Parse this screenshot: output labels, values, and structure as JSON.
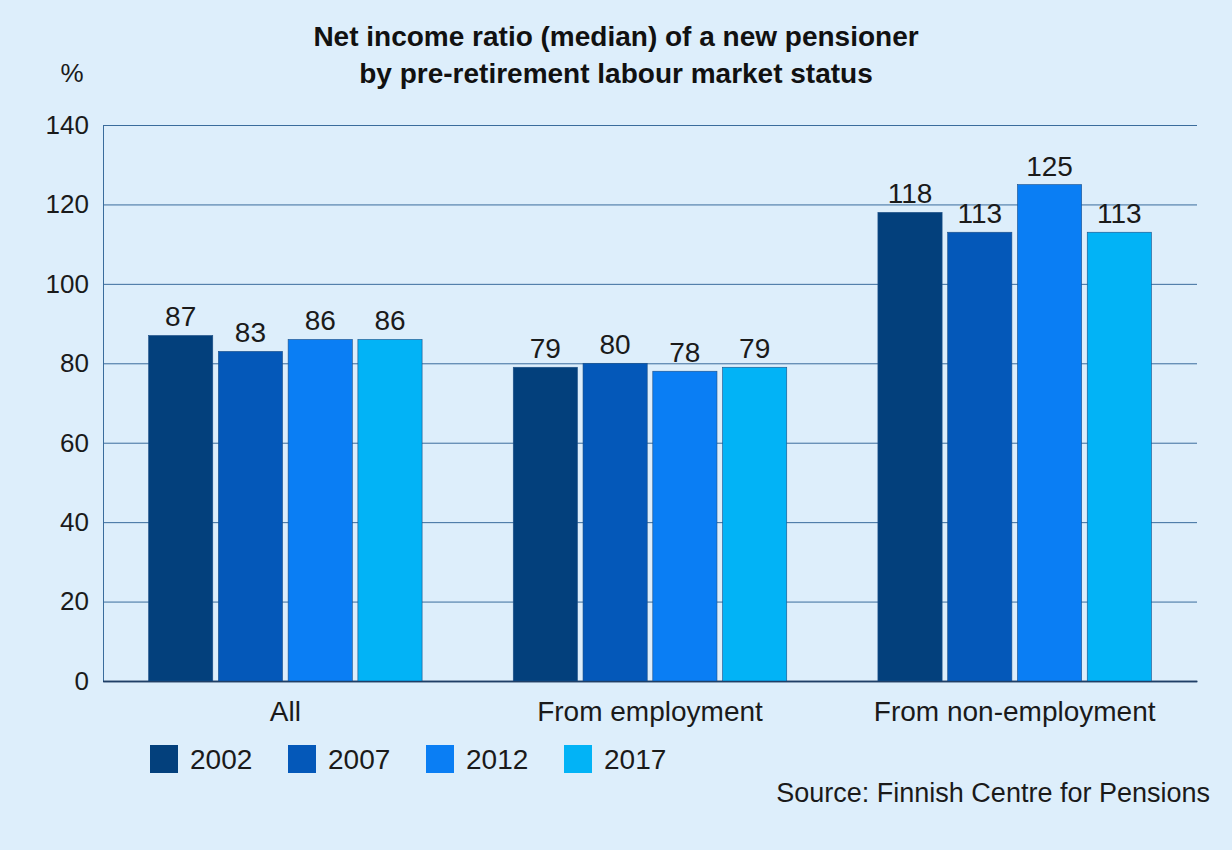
{
  "chart_data": {
    "type": "bar",
    "title": "Net income ratio (median) of a new pensioner\nby pre-retirement labour market status",
    "ylabel": "%",
    "categories": [
      "All",
      "From employment",
      "From non-employment"
    ],
    "series": [
      {
        "name": "2002",
        "color": "#03407c",
        "values": [
          87,
          79,
          118
        ]
      },
      {
        "name": "2007",
        "color": "#0458b9",
        "values": [
          83,
          80,
          113
        ]
      },
      {
        "name": "2012",
        "color": "#0a7ef4",
        "values": [
          86,
          78,
          125
        ]
      },
      {
        "name": "2017",
        "color": "#02b3f6",
        "values": [
          86,
          79,
          113
        ]
      }
    ],
    "ylim": [
      0,
      140
    ],
    "yticks": [
      0,
      20,
      40,
      60,
      80,
      100,
      120,
      140
    ],
    "grid": true,
    "data_labels": true,
    "legend": "bottom-left",
    "annotations": [
      "Source: Finnish Centre for Pensions"
    ]
  }
}
